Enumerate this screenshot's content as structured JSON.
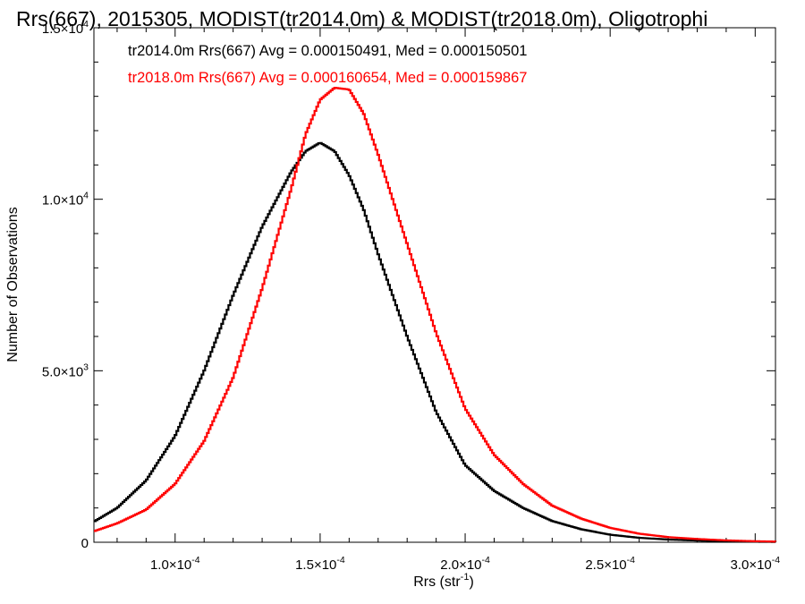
{
  "chart_data": {
    "type": "line",
    "title": "Rrs(667), 2015305, MODIST(tr2014.0m) & MODIST(tr2018.0m), Oligotrophi",
    "xlabel": "Rrs (str",
    "xlabel_sup": "-1",
    "xlabel_close": ")",
    "ylabel": "Number of Observations",
    "xlim": [
      7.2e-05,
      0.000307
    ],
    "ylim": [
      0,
      15000
    ],
    "grid": false,
    "legend_position": "top-left",
    "x_ticks": [
      {
        "value": 0.0001,
        "mantissa": "1.0×10",
        "exp": "-4"
      },
      {
        "value": 0.00015,
        "mantissa": "1.5×10",
        "exp": "-4"
      },
      {
        "value": 0.0002,
        "mantissa": "2.0×10",
        "exp": "-4"
      },
      {
        "value": 0.00025,
        "mantissa": "2.5×10",
        "exp": "-4"
      },
      {
        "value": 0.0003,
        "mantissa": "3.0×10",
        "exp": "-4"
      }
    ],
    "y_ticks": [
      {
        "value": 0,
        "mantissa": "0",
        "exp": ""
      },
      {
        "value": 5000,
        "mantissa": "5.0×10",
        "exp": "3"
      },
      {
        "value": 10000,
        "mantissa": "1.0×10",
        "exp": "4"
      },
      {
        "value": 15000,
        "mantissa": "1.5×10",
        "exp": "4"
      }
    ],
    "x": [
      7.2e-05,
      8e-05,
      9e-05,
      0.0001,
      0.00011,
      0.00012,
      0.00013,
      0.00014,
      0.000145,
      0.00015,
      0.000155,
      0.00016,
      0.000165,
      0.00017,
      0.00018,
      0.00019,
      0.0002,
      0.00021,
      0.00022,
      0.00023,
      0.00024,
      0.00025,
      0.00026,
      0.00027,
      0.00028,
      0.00029,
      0.0003,
      0.000307
    ],
    "series": [
      {
        "name": "tr2014.0m",
        "color": "#000000",
        "annotation": "tr2014.0m Rrs(667) Avg = 0.000150491, Med = 0.000150501",
        "values": [
          600,
          1000,
          1800,
          3100,
          5000,
          7200,
          9200,
          10800,
          11400,
          11650,
          11400,
          10700,
          9700,
          8400,
          6000,
          3800,
          2250,
          1500,
          1000,
          620,
          380,
          220,
          130,
          80,
          50,
          30,
          15,
          10
        ]
      },
      {
        "name": "tr2018.0m",
        "color": "#ff0000",
        "annotation": "tr2018.0m Rrs(667) Avg = 0.000160654, Med = 0.000159867",
        "values": [
          320,
          550,
          950,
          1700,
          2950,
          4800,
          7400,
          10300,
          11900,
          12900,
          13250,
          13200,
          12500,
          11300,
          8700,
          6100,
          3900,
          2550,
          1700,
          1070,
          690,
          420,
          250,
          150,
          95,
          55,
          30,
          20
        ]
      }
    ]
  }
}
